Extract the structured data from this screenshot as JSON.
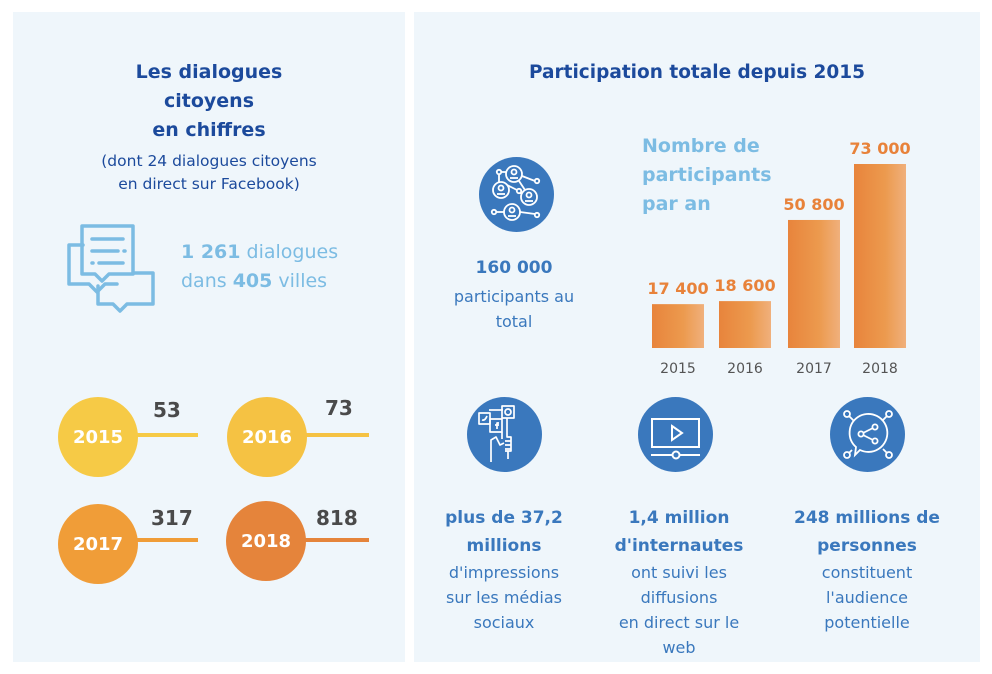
{
  "left": {
    "title_lines": [
      "Les dialogues",
      "citoyens",
      "en chiffres"
    ],
    "subtitle_lines": [
      "(dont 24 dialogues citoyens",
      "en direct sur Facebook)"
    ],
    "dialog_icon": "chat-bubbles-icon",
    "dialogues_count": "1 261",
    "dialogues_label": " dialogues",
    "cities_prefix": "dans ",
    "cities_count": "405",
    "cities_label": " villes",
    "years": [
      {
        "year": "2015",
        "count": "53",
        "color": "#f6ca46"
      },
      {
        "year": "2016",
        "count": "73",
        "color": "#f5c243"
      },
      {
        "year": "2017",
        "count": "317",
        "color": "#f09d38"
      },
      {
        "year": "2018",
        "count": "818",
        "color": "#e5843b"
      }
    ]
  },
  "right": {
    "title": "Participation totale depuis 2015",
    "network_icon": "people-network-icon",
    "total_number": "160 000",
    "total_label_lines": [
      "participants au",
      "total"
    ],
    "stats": [
      {
        "icon": "social-media-hand-icon",
        "bold_lines": [
          "plus de 37,2",
          "millions"
        ],
        "text_lines": [
          "d'impressions",
          "sur les médias",
          "sociaux"
        ]
      },
      {
        "icon": "video-player-icon",
        "bold_lines": [
          "1,4 million",
          "d'internautes"
        ],
        "text_lines": [
          "ont suivi les",
          "diffusions",
          "en direct sur le",
          "web"
        ]
      },
      {
        "icon": "share-bubble-icon",
        "bold_lines": [
          "248 millions de",
          "personnes"
        ],
        "text_lines": [
          "constituent",
          "l'audience",
          "potentielle"
        ]
      }
    ]
  },
  "chart_data": {
    "type": "bar",
    "title": "Nombre de participants par an",
    "title_lines": [
      "Nombre de",
      "participants",
      "par an"
    ],
    "categories": [
      "2015",
      "2016",
      "2017",
      "2018"
    ],
    "values": [
      17400,
      18600,
      50800,
      73000
    ],
    "value_labels": [
      "17 400",
      "18 600",
      "50 800",
      "73 000"
    ],
    "xlabel": "",
    "ylabel": "",
    "ylim": [
      0,
      73000
    ],
    "grid": false,
    "legend": "none",
    "bar_color": "#e8843c",
    "label_color": "#e8823a",
    "title_color": "#7cbce3"
  }
}
